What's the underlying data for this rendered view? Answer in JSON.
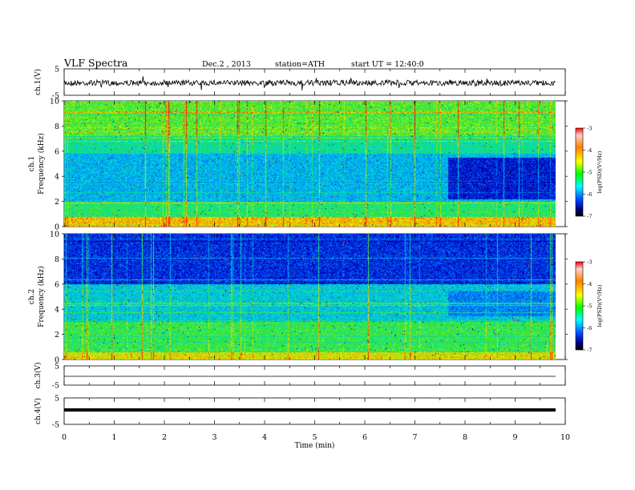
{
  "header": {
    "title": "VLF  Spectra",
    "date": "Dec.2  , 2013",
    "station": "station=ATH",
    "start": "start  UT  =    12:40:0"
  },
  "colors": {
    "spectrum_low": "#000080",
    "spectrum_high": "#ff0000",
    "trace": "#000000"
  },
  "chart_data": [
    {
      "type": "line",
      "name": "ch.1 waveform",
      "ylabel": "ch.1(V)",
      "ylim": [
        -5,
        5
      ],
      "yticks": [
        "5",
        "-5"
      ],
      "xlim": [
        0,
        10
      ],
      "description": "broadband VLF waveform, amplitude about ±1 V"
    },
    {
      "type": "heatmap",
      "name": "ch.1 spectrogram",
      "ylabel": "ch.1",
      "ylabel2": "Frequency  (kHz)",
      "ylim": [
        0,
        10
      ],
      "yticks": [
        "0",
        "2",
        "4",
        "6",
        "8",
        "10"
      ],
      "xlim": [
        0,
        10
      ],
      "colorbar": {
        "label": "log(PSD)(V²/Hz)",
        "range": [
          -7,
          -3
        ],
        "ticks": [
          "-3",
          "-4",
          "-5",
          "-6",
          "-7"
        ]
      }
    },
    {
      "type": "heatmap",
      "name": "ch.2 spectrogram",
      "ylabel": "ch.2",
      "ylabel2": "Frequency  (kHz)",
      "ylim": [
        0,
        10
      ],
      "yticks": [
        "0",
        "2",
        "4",
        "6",
        "8",
        "10"
      ],
      "xlim": [
        0,
        10
      ],
      "colorbar": {
        "label": "log(PSD)(V²/Hz)",
        "range": [
          -7,
          -3
        ],
        "ticks": [
          "-3",
          "-4",
          "-5",
          "-6",
          "-7"
        ]
      }
    },
    {
      "type": "line",
      "name": "ch.3 waveform",
      "ylabel": "ch.3(V)",
      "ylim": [
        -5,
        5
      ],
      "yticks": [
        "5",
        "-5"
      ],
      "xlim": [
        0,
        10
      ],
      "description": "flat trace near 0 V"
    },
    {
      "type": "line",
      "name": "ch.4 waveform",
      "ylabel": "ch.4(V)",
      "ylim": [
        -5,
        5
      ],
      "yticks": [
        "5",
        "-5"
      ],
      "xlim": [
        0,
        10
      ],
      "description": "thick flat trace near 0 V"
    }
  ],
  "xaxis": {
    "label": "Time  (min)",
    "ticks": [
      "0",
      "1",
      "2",
      "3",
      "4",
      "5",
      "6",
      "7",
      "8",
      "9",
      "10"
    ],
    "range": [
      0,
      10
    ]
  }
}
